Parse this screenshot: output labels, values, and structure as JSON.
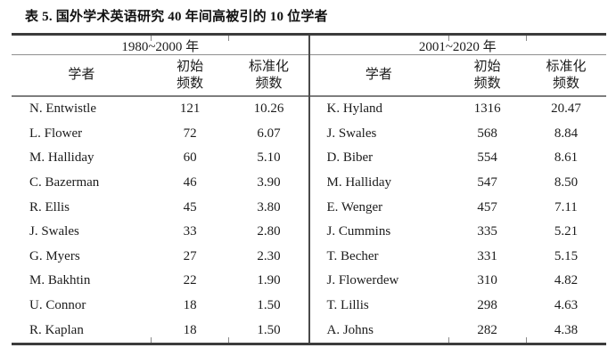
{
  "title": "表 5. 国外学术英语研究 40 年间高被引的 10 位学者",
  "colors": {
    "background": "#ffffff",
    "text": "#1c1c1c",
    "thick_rule": "#3c3c3c",
    "thin_rule": "#8f8f8f"
  },
  "table": {
    "groups": [
      {
        "period": "1980~2000 年",
        "columns": {
          "scholar": "学者",
          "initial_line1": "初始",
          "initial_line2": "频数",
          "normalized_line1": "标准化",
          "normalized_line2": "频数"
        },
        "rows": [
          {
            "scholar": "N. Entwistle",
            "initial": "121",
            "normalized": "10.26"
          },
          {
            "scholar": "L. Flower",
            "initial": "72",
            "normalized": "6.07"
          },
          {
            "scholar": "M. Halliday",
            "initial": "60",
            "normalized": "5.10"
          },
          {
            "scholar": "C. Bazerman",
            "initial": "46",
            "normalized": "3.90"
          },
          {
            "scholar": "R. Ellis",
            "initial": "45",
            "normalized": "3.80"
          },
          {
            "scholar": "J. Swales",
            "initial": "33",
            "normalized": "2.80"
          },
          {
            "scholar": "G. Myers",
            "initial": "27",
            "normalized": "2.30"
          },
          {
            "scholar": "M. Bakhtin",
            "initial": "22",
            "normalized": "1.90"
          },
          {
            "scholar": "U. Connor",
            "initial": "18",
            "normalized": "1.50"
          },
          {
            "scholar": "R. Kaplan",
            "initial": "18",
            "normalized": "1.50"
          }
        ]
      },
      {
        "period": "2001~2020 年",
        "columns": {
          "scholar": "学者",
          "initial_line1": "初始",
          "initial_line2": "频数",
          "normalized_line1": "标准化",
          "normalized_line2": "频数"
        },
        "rows": [
          {
            "scholar": "K. Hyland",
            "initial": "1316",
            "normalized": "20.47"
          },
          {
            "scholar": "J. Swales",
            "initial": "568",
            "normalized": "8.84"
          },
          {
            "scholar": "D. Biber",
            "initial": "554",
            "normalized": "8.61"
          },
          {
            "scholar": "M. Halliday",
            "initial": "547",
            "normalized": "8.50"
          },
          {
            "scholar": "E. Wenger",
            "initial": "457",
            "normalized": "7.11"
          },
          {
            "scholar": "J. Cummins",
            "initial": "335",
            "normalized": "5.21"
          },
          {
            "scholar": "T. Becher",
            "initial": "331",
            "normalized": "5.15"
          },
          {
            "scholar": "J. Flowerdew",
            "initial": "310",
            "normalized": "4.82"
          },
          {
            "scholar": "T. Lillis",
            "initial": "298",
            "normalized": "4.63"
          },
          {
            "scholar": "A. Johns",
            "initial": "282",
            "normalized": "4.38"
          }
        ]
      }
    ]
  }
}
